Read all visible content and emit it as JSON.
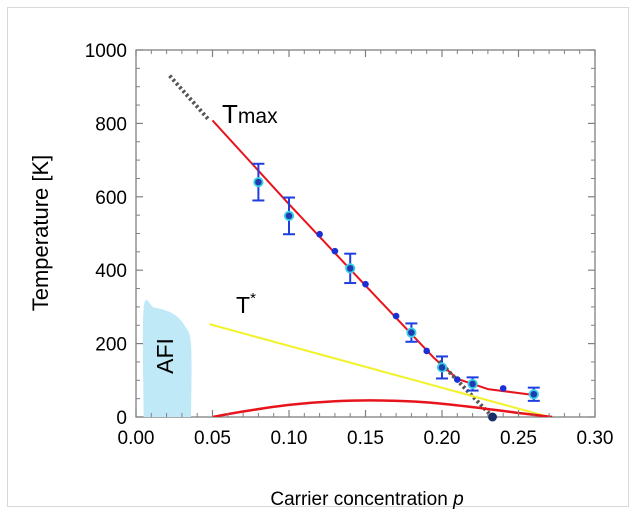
{
  "chart_data": {
    "type": "scatter",
    "xlabel": "Carrier concentration",
    "xlabel_var": "p",
    "ylabel": "Temperature [K]",
    "xlim": [
      0.0,
      0.3
    ],
    "ylim": [
      0,
      1000
    ],
    "x_ticks": [
      "0.00",
      "0.05",
      "0.10",
      "0.15",
      "0.20",
      "0.25",
      "0.30"
    ],
    "y_ticks": [
      "0",
      "200",
      "400",
      "600",
      "800",
      "1000"
    ],
    "grid": false,
    "annotations": {
      "tmax_main": "T",
      "tmax_sub": "max",
      "tstar_main": "T",
      "tstar_sup": "*",
      "afi": "AFI"
    },
    "series": [
      {
        "name": "Tmax",
        "style": "markers-with-errorbars",
        "points": [
          {
            "x": 0.08,
            "y": 640,
            "err": 50
          },
          {
            "x": 0.1,
            "y": 548,
            "err": 50
          },
          {
            "x": 0.14,
            "y": 405,
            "err": 40
          },
          {
            "x": 0.18,
            "y": 230,
            "err": 25
          },
          {
            "x": 0.2,
            "y": 135,
            "err": 30
          },
          {
            "x": 0.22,
            "y": 90,
            "err": 18
          },
          {
            "x": 0.26,
            "y": 62,
            "err": 18
          }
        ]
      },
      {
        "name": "Tmax (no error bars)",
        "style": "markers",
        "points": [
          {
            "x": 0.12,
            "y": 498
          },
          {
            "x": 0.13,
            "y": 452
          },
          {
            "x": 0.15,
            "y": 362
          },
          {
            "x": 0.17,
            "y": 275
          },
          {
            "x": 0.19,
            "y": 180
          },
          {
            "x": 0.21,
            "y": 102
          },
          {
            "x": 0.24,
            "y": 78
          }
        ]
      },
      {
        "name": "Tmax fit",
        "style": "line",
        "color": "#e8141c",
        "points": [
          {
            "x": 0.05,
            "y": 808
          },
          {
            "x": 0.1,
            "y": 580
          },
          {
            "x": 0.15,
            "y": 358
          },
          {
            "x": 0.195,
            "y": 160
          },
          {
            "x": 0.21,
            "y": 104
          },
          {
            "x": 0.23,
            "y": 76
          },
          {
            "x": 0.26,
            "y": 60
          }
        ]
      },
      {
        "name": "linear extrapolation",
        "style": "dotted",
        "color": "#555555",
        "points": [
          {
            "x": 0.022,
            "y": 930
          },
          {
            "x": 0.048,
            "y": 808
          }
        ],
        "points_2": [
          {
            "x": 0.198,
            "y": 152
          },
          {
            "x": 0.233,
            "y": 0
          }
        ]
      },
      {
        "name": "T*",
        "style": "line",
        "color": "#f2f22a",
        "points": [
          {
            "x": 0.048,
            "y": 253
          },
          {
            "x": 0.27,
            "y": 0
          }
        ]
      },
      {
        "name": "superconducting dome",
        "style": "curve",
        "color": "#e8141c",
        "points": [
          {
            "x": 0.05,
            "y": 0
          },
          {
            "x": 0.07,
            "y": 15
          },
          {
            "x": 0.1,
            "y": 33
          },
          {
            "x": 0.13,
            "y": 43
          },
          {
            "x": 0.16,
            "y": 45
          },
          {
            "x": 0.19,
            "y": 40
          },
          {
            "x": 0.22,
            "y": 27
          },
          {
            "x": 0.25,
            "y": 11
          },
          {
            "x": 0.272,
            "y": 0
          }
        ]
      },
      {
        "name": "AFI region",
        "style": "filled-region",
        "color": "#bfe9f7",
        "points": [
          {
            "x": 0.005,
            "y": 0
          },
          {
            "x": 0.005,
            "y": 296
          },
          {
            "x": 0.012,
            "y": 298
          },
          {
            "x": 0.024,
            "y": 282
          },
          {
            "x": 0.032,
            "y": 248
          },
          {
            "x": 0.036,
            "y": 195
          },
          {
            "x": 0.036,
            "y": 0
          }
        ]
      },
      {
        "name": "Tmax endpoint",
        "style": "marker",
        "color": "#1a2e6a",
        "points": [
          {
            "x": 0.233,
            "y": 0
          }
        ]
      }
    ]
  }
}
